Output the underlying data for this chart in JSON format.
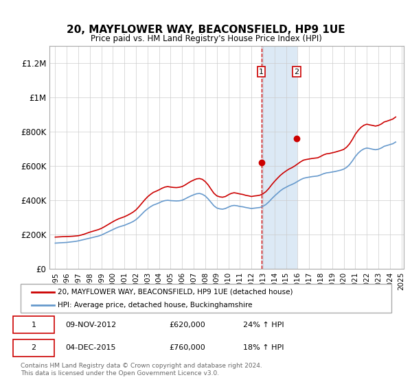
{
  "title": "20, MAYFLOWER WAY, BEACONSFIELD, HP9 1UE",
  "subtitle": "Price paid vs. HM Land Registry's House Price Index (HPI)",
  "legend_line1": "20, MAYFLOWER WAY, BEACONSFIELD, HP9 1UE (detached house)",
  "legend_line2": "HPI: Average price, detached house, Buckinghamshire",
  "sale1_label": "1",
  "sale1_date": "09-NOV-2012",
  "sale1_price": "£620,000",
  "sale1_hpi": "24% ↑ HPI",
  "sale1_year": 2012.86,
  "sale1_value": 620000,
  "sale2_label": "2",
  "sale2_date": "04-DEC-2015",
  "sale2_price": "£760,000",
  "sale2_hpi": "18% ↑ HPI",
  "sale2_year": 2015.92,
  "sale2_value": 760000,
  "red_color": "#cc0000",
  "blue_color": "#6699cc",
  "highlight_color": "#dce9f5",
  "background_color": "#ffffff",
  "grid_color": "#cccccc",
  "footer_text": "Contains HM Land Registry data © Crown copyright and database right 2024.\nThis data is licensed under the Open Government Licence v3.0.",
  "hpi_years": [
    1995,
    1995.25,
    1995.5,
    1995.75,
    1996,
    1996.25,
    1996.5,
    1996.75,
    1997,
    1997.25,
    1997.5,
    1997.75,
    1998,
    1998.25,
    1998.5,
    1998.75,
    1999,
    1999.25,
    1999.5,
    1999.75,
    2000,
    2000.25,
    2000.5,
    2000.75,
    2001,
    2001.25,
    2001.5,
    2001.75,
    2002,
    2002.25,
    2002.5,
    2002.75,
    2003,
    2003.25,
    2003.5,
    2003.75,
    2004,
    2004.25,
    2004.5,
    2004.75,
    2005,
    2005.25,
    2005.5,
    2005.75,
    2006,
    2006.25,
    2006.5,
    2006.75,
    2007,
    2007.25,
    2007.5,
    2007.75,
    2008,
    2008.25,
    2008.5,
    2008.75,
    2009,
    2009.25,
    2009.5,
    2009.75,
    2010,
    2010.25,
    2010.5,
    2010.75,
    2011,
    2011.25,
    2011.5,
    2011.75,
    2012,
    2012.25,
    2012.5,
    2012.75,
    2013,
    2013.25,
    2013.5,
    2013.75,
    2014,
    2014.25,
    2014.5,
    2014.75,
    2015,
    2015.25,
    2015.5,
    2015.75,
    2016,
    2016.25,
    2016.5,
    2016.75,
    2017,
    2017.25,
    2017.5,
    2017.75,
    2018,
    2018.25,
    2018.5,
    2018.75,
    2019,
    2019.25,
    2019.5,
    2019.75,
    2020,
    2020.25,
    2020.5,
    2020.75,
    2021,
    2021.25,
    2021.5,
    2021.75,
    2022,
    2022.25,
    2022.5,
    2022.75,
    2023,
    2023.25,
    2023.5,
    2023.75,
    2024,
    2024.25,
    2024.5
  ],
  "hpi_values": [
    150000,
    151000,
    152000,
    153000,
    154000,
    156000,
    158000,
    160000,
    163000,
    167000,
    171000,
    175000,
    179000,
    183000,
    187000,
    191000,
    197000,
    205000,
    213000,
    221000,
    229000,
    237000,
    244000,
    249000,
    254000,
    261000,
    268000,
    276000,
    287000,
    302000,
    319000,
    336000,
    350000,
    362000,
    372000,
    378000,
    385000,
    393000,
    398000,
    400000,
    398000,
    397000,
    396000,
    397000,
    400000,
    408000,
    417000,
    425000,
    432000,
    438000,
    440000,
    435000,
    425000,
    408000,
    388000,
    368000,
    355000,
    350000,
    348000,
    352000,
    360000,
    367000,
    370000,
    368000,
    364000,
    362000,
    358000,
    355000,
    352000,
    354000,
    356000,
    358000,
    365000,
    375000,
    390000,
    408000,
    425000,
    440000,
    455000,
    467000,
    476000,
    485000,
    492000,
    500000,
    510000,
    520000,
    528000,
    532000,
    535000,
    538000,
    540000,
    542000,
    548000,
    555000,
    560000,
    562000,
    565000,
    568000,
    572000,
    576000,
    582000,
    592000,
    608000,
    630000,
    655000,
    675000,
    690000,
    700000,
    705000,
    702000,
    698000,
    695000,
    698000,
    705000,
    715000,
    720000,
    725000,
    730000,
    740000
  ],
  "red_years": [
    1995,
    1995.25,
    1995.5,
    1995.75,
    1996,
    1996.25,
    1996.5,
    1996.75,
    1997,
    1997.25,
    1997.5,
    1997.75,
    1998,
    1998.25,
    1998.5,
    1998.75,
    1999,
    1999.25,
    1999.5,
    1999.75,
    2000,
    2000.25,
    2000.5,
    2000.75,
    2001,
    2001.25,
    2001.5,
    2001.75,
    2002,
    2002.25,
    2002.5,
    2002.75,
    2003,
    2003.25,
    2003.5,
    2003.75,
    2004,
    2004.25,
    2004.5,
    2004.75,
    2005,
    2005.25,
    2005.5,
    2005.75,
    2006,
    2006.25,
    2006.5,
    2006.75,
    2007,
    2007.25,
    2007.5,
    2007.75,
    2008,
    2008.25,
    2008.5,
    2008.75,
    2009,
    2009.25,
    2009.5,
    2009.75,
    2010,
    2010.25,
    2010.5,
    2010.75,
    2011,
    2011.25,
    2011.5,
    2011.75,
    2012,
    2012.25,
    2012.5,
    2012.75,
    2013,
    2013.25,
    2013.5,
    2013.75,
    2014,
    2014.25,
    2014.5,
    2014.75,
    2015,
    2015.25,
    2015.5,
    2015.75,
    2016,
    2016.25,
    2016.5,
    2016.75,
    2017,
    2017.25,
    2017.5,
    2017.75,
    2018,
    2018.25,
    2018.5,
    2018.75,
    2019,
    2019.25,
    2019.5,
    2019.75,
    2020,
    2020.25,
    2020.5,
    2020.75,
    2021,
    2021.25,
    2021.5,
    2021.75,
    2022,
    2022.25,
    2022.5,
    2022.75,
    2023,
    2023.25,
    2023.5,
    2023.75,
    2024,
    2024.25,
    2024.5
  ],
  "red_values": [
    185000,
    186000,
    187000,
    188000,
    188500,
    189000,
    190000,
    191500,
    193000,
    197000,
    202000,
    208000,
    214000,
    219000,
    224000,
    229000,
    236000,
    245000,
    255000,
    265000,
    275000,
    284000,
    292000,
    298000,
    304000,
    312000,
    321000,
    331000,
    344000,
    362000,
    382000,
    402000,
    420000,
    434000,
    446000,
    453000,
    461000,
    470000,
    477000,
    480000,
    477000,
    475000,
    474000,
    476000,
    480000,
    489000,
    500000,
    510000,
    518000,
    525000,
    527000,
    522000,
    509000,
    490000,
    465000,
    441000,
    426000,
    420000,
    418000,
    422000,
    432000,
    440000,
    444000,
    441000,
    437000,
    434000,
    429000,
    426000,
    422000,
    425000,
    427000,
    430000,
    438000,
    450000,
    468000,
    490000,
    510000,
    528000,
    545000,
    559000,
    571000,
    582000,
    590000,
    600000,
    612000,
    624000,
    634000,
    638000,
    641000,
    644000,
    646000,
    648000,
    656000,
    665000,
    671000,
    673000,
    677000,
    681000,
    686000,
    691000,
    697000,
    710000,
    729000,
    755000,
    785000,
    808000,
    826000,
    838000,
    844000,
    840000,
    837000,
    833000,
    837000,
    845000,
    857000,
    862000,
    868000,
    874000,
    886000
  ],
  "xlim": [
    1994.5,
    2025.2
  ],
  "ylim": [
    0,
    1300000
  ],
  "yticks": [
    0,
    200000,
    400000,
    600000,
    800000,
    1000000,
    1200000
  ],
  "ytick_labels": [
    "£0",
    "£200K",
    "£400K",
    "£600K",
    "£800K",
    "£1M",
    "£1.2M"
  ],
  "xticks": [
    1995,
    1996,
    1997,
    1998,
    1999,
    2000,
    2001,
    2002,
    2003,
    2004,
    2005,
    2006,
    2007,
    2008,
    2009,
    2010,
    2011,
    2012,
    2013,
    2014,
    2015,
    2016,
    2017,
    2018,
    2019,
    2020,
    2021,
    2022,
    2023,
    2024,
    2025
  ]
}
